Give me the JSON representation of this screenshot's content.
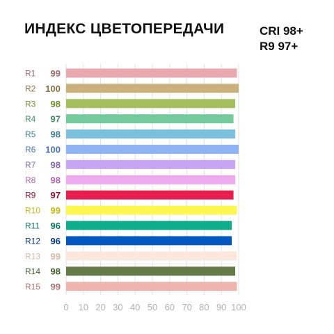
{
  "chart_data": {
    "type": "bar",
    "orientation": "horizontal",
    "title": "ИНДЕКС ЦВЕТОПЕРЕДАЧИ",
    "subtitle_lines": [
      "CRI 98+",
      "R9 97+"
    ],
    "categories": [
      "R1",
      "R2",
      "R3",
      "R4",
      "R5",
      "R6",
      "R7",
      "R8",
      "R9",
      "R10",
      "R11",
      "R12",
      "R13",
      "R14",
      "R15"
    ],
    "values": [
      99,
      100,
      98,
      97,
      98,
      100,
      98,
      98,
      97,
      99,
      96,
      96,
      99,
      98,
      99
    ],
    "bar_colors": [
      "#e8a9b1",
      "#c9b07c",
      "#a6bf5e",
      "#74c99d",
      "#7bc0dd",
      "#8fb3f7",
      "#c7a4f4",
      "#eeaaee",
      "#e71f4f",
      "#fdf752",
      "#0eae8a",
      "#0457c0",
      "#fde7dc",
      "#657a49",
      "#eeb4ae"
    ],
    "label_colors": [
      "#a06870",
      "#8a7545",
      "#6e8a2a",
      "#3e8a66",
      "#3e7f9b",
      "#4a72b8",
      "#8466b5",
      "#b066b0",
      "#8a0a2a",
      "#c7bc10",
      "#087a60",
      "#03368a",
      "#d8b8a8",
      "#465a30",
      "#b07070"
    ],
    "xlim": [
      0,
      100
    ],
    "xticks": [
      "0",
      "10",
      "20",
      "30",
      "40",
      "50",
      "60",
      "70",
      "80",
      "90",
      "100"
    ],
    "grid": true
  }
}
